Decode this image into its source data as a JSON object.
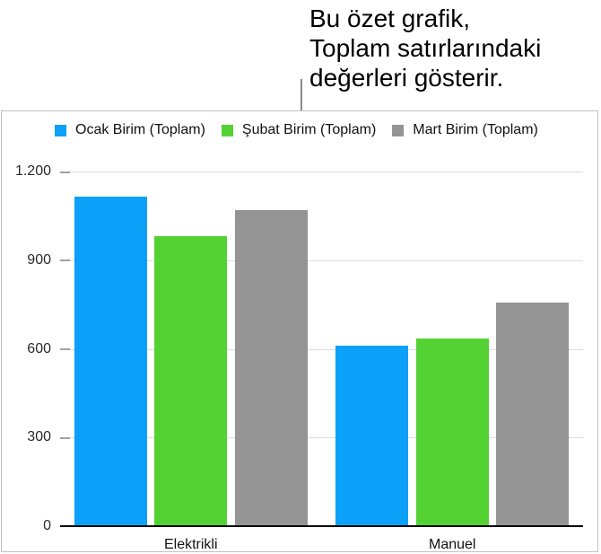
{
  "callout": {
    "lines": [
      "Bu özet grafik,",
      "Toplam satırlarındaki",
      "değerleri gösterir."
    ]
  },
  "chart_data": {
    "type": "bar",
    "title": "",
    "categories": [
      "Elektrikli",
      "Manuel"
    ],
    "series": [
      {
        "name": "Ocak Birim (Toplam)",
        "color": "#0ba1f8",
        "values": [
          1115,
          610
        ]
      },
      {
        "name": "Şubat Birim (Toplam)",
        "color": "#55d233",
        "values": [
          980,
          635
        ]
      },
      {
        "name": "Mart Birim (Toplam)",
        "color": "#949494",
        "values": [
          1070,
          755
        ]
      }
    ],
    "ylim": [
      0,
      1200
    ],
    "yticks": [
      {
        "label": "0",
        "value": 0
      },
      {
        "label": "300",
        "value": 300
      },
      {
        "label": "600",
        "value": 600
      },
      {
        "label": "900",
        "value": 900
      },
      {
        "label": "1.200",
        "value": 1200
      }
    ],
    "grid": true,
    "legend_position": "top-left"
  },
  "colors": {
    "grid": "#dcdcdc",
    "tick": "#a2a2a2",
    "axis": "#000000",
    "border": "#c0c0c0",
    "callout_line": "#8a8a8a"
  }
}
